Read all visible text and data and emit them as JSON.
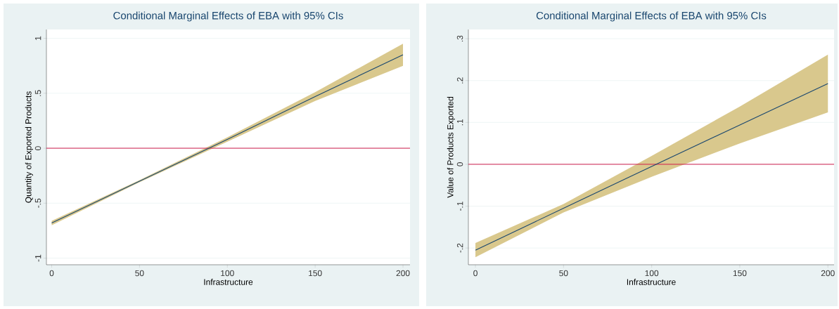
{
  "chart_data": [
    {
      "type": "line",
      "title": "Conditional Marginal Effects of EBA with 95% CIs",
      "xlabel": "Infrastructure",
      "ylabel": "Quantity of  Exported Products",
      "x": [
        0,
        50,
        100,
        150,
        200
      ],
      "series": [
        {
          "color": "#1a476f",
          "values": [
            -0.68,
            -0.3,
            0.08,
            0.47,
            0.85
          ],
          "lower": [
            -0.7,
            -0.31,
            0.06,
            0.43,
            0.75
          ],
          "upper": [
            -0.66,
            -0.29,
            0.1,
            0.51,
            0.95
          ]
        }
      ],
      "xlim": [
        -3,
        204
      ],
      "xticks": [
        0,
        50,
        100,
        150,
        200
      ],
      "ylim": [
        -1.06,
        1.08
      ],
      "yticks": [
        {
          "value": -1,
          "label": "-1"
        },
        {
          "value": -0.5,
          "label": "-.5"
        },
        0,
        {
          "value": 0.5,
          "label": ".5"
        },
        1
      ],
      "ref_lines": [
        {
          "axis": "y",
          "value": 0,
          "color": "#d01c4b"
        }
      ],
      "grid": "y"
    },
    {
      "type": "line",
      "title": "Conditional Marginal Effects of EBA with 95% CIs",
      "xlabel": "Infrastructure",
      "ylabel": "Value of Products Exported",
      "x": [
        0,
        50,
        100,
        150,
        200
      ],
      "series": [
        {
          "color": "#1a476f",
          "values": [
            -0.205,
            -0.105,
            -0.005,
            0.094,
            0.193
          ],
          "lower": [
            -0.222,
            -0.115,
            -0.03,
            0.05,
            0.124
          ],
          "upper": [
            -0.188,
            -0.095,
            0.02,
            0.138,
            0.262
          ]
        }
      ],
      "xlim": [
        -4,
        203.5
      ],
      "xticks": [
        0,
        50,
        100,
        150,
        200
      ],
      "ylim": [
        -0.24,
        0.322
      ],
      "yticks": [
        {
          "value": -0.2,
          "label": "-.2"
        },
        {
          "value": -0.1,
          "label": "-.1"
        },
        0,
        {
          "value": 0.1,
          "label": ".1"
        },
        {
          "value": 0.2,
          "label": ".2"
        },
        {
          "value": 0.3,
          "label": ".3"
        }
      ],
      "ref_lines": [
        {
          "axis": "y",
          "value": 0,
          "color": "#d01c4b"
        }
      ],
      "grid": "y"
    }
  ]
}
